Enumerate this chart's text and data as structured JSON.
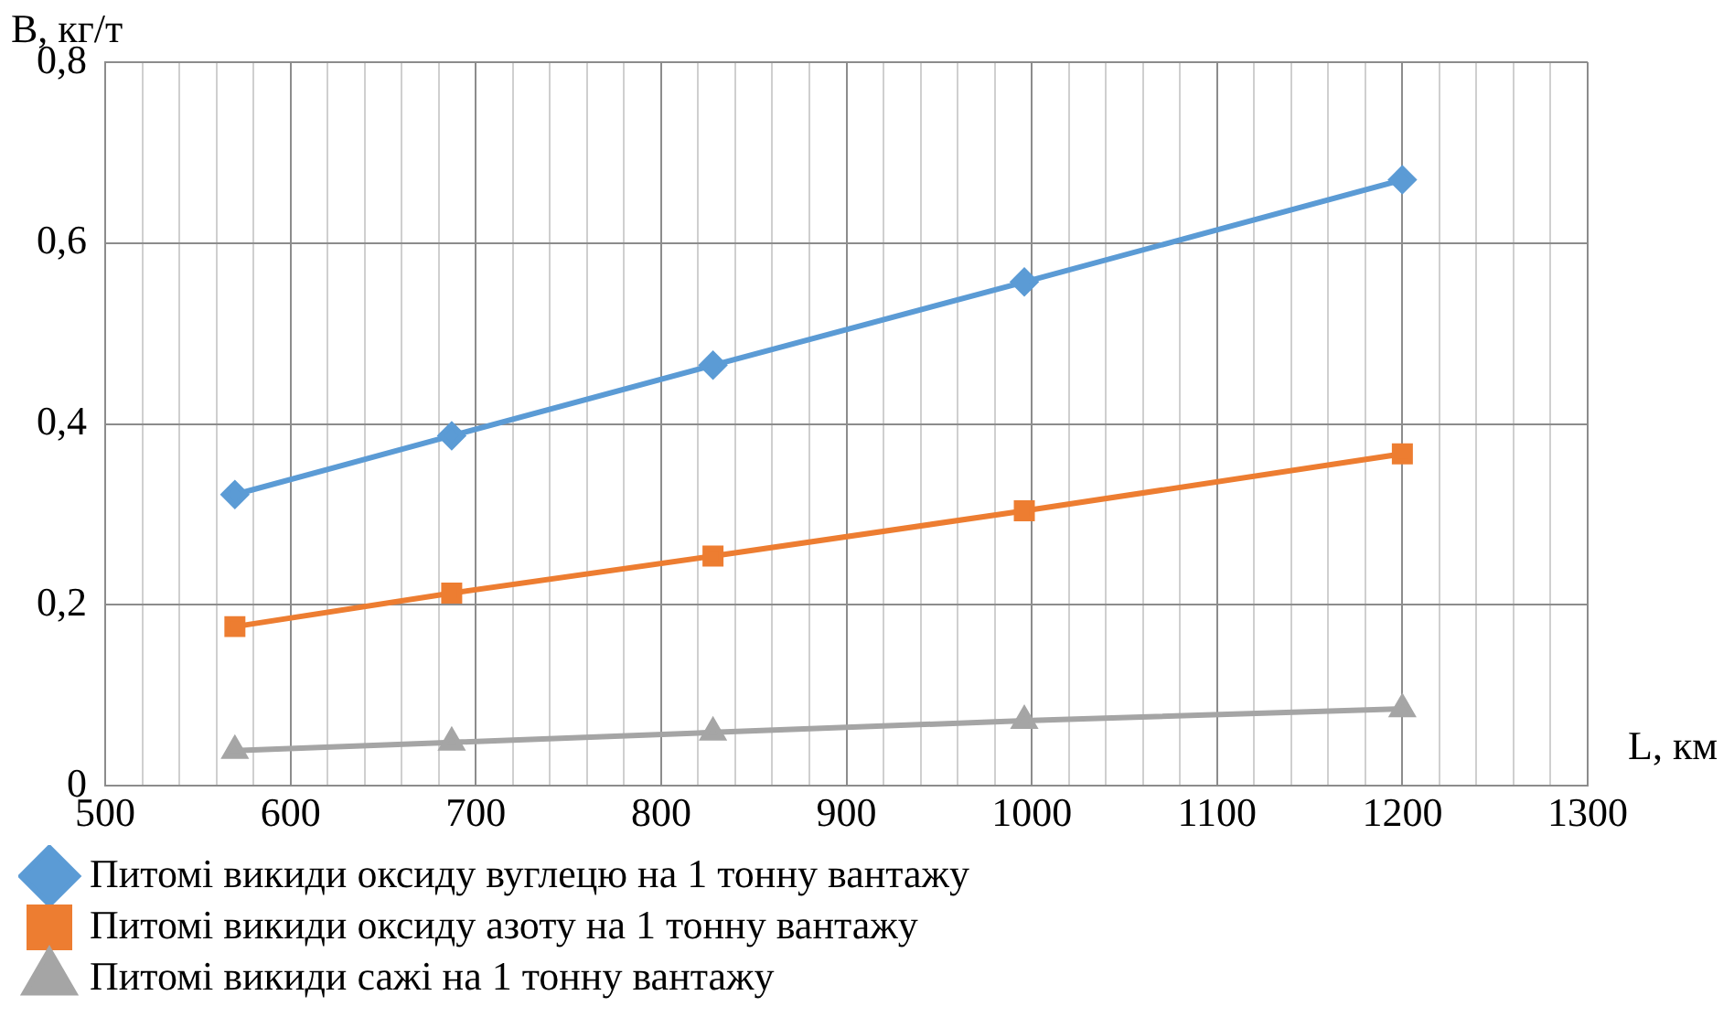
{
  "chart_data": {
    "type": "line",
    "xlabel": "L, км",
    "ylabel": "B, кг/т",
    "xlim": [
      500,
      1300
    ],
    "xticks": [
      500,
      {
        "value": 520,
        "label": null
      },
      {
        "value": 540,
        "label": null
      },
      {
        "value": 560,
        "label": null
      },
      {
        "value": 580,
        "label": null
      },
      600,
      {
        "value": 620,
        "label": null
      },
      {
        "value": 640,
        "label": null
      },
      {
        "value": 660,
        "label": null
      },
      {
        "value": 680,
        "label": null
      },
      700,
      {
        "value": 720,
        "label": null
      },
      {
        "value": 740,
        "label": null
      },
      {
        "value": 760,
        "label": null
      },
      {
        "value": 780,
        "label": null
      },
      800,
      {
        "value": 820,
        "label": null
      },
      {
        "value": 840,
        "label": null
      },
      {
        "value": 860,
        "label": null
      },
      {
        "value": 880,
        "label": null
      },
      900,
      {
        "value": 920,
        "label": null
      },
      {
        "value": 940,
        "label": null
      },
      {
        "value": 960,
        "label": null
      },
      {
        "value": 980,
        "label": null
      },
      1000,
      {
        "value": 1020,
        "label": null
      },
      {
        "value": 1040,
        "label": null
      },
      {
        "value": 1060,
        "label": null
      },
      {
        "value": 1080,
        "label": null
      },
      1100,
      {
        "value": 1120,
        "label": null
      },
      {
        "value": 1140,
        "label": null
      },
      {
        "value": 1160,
        "label": null
      },
      {
        "value": 1180,
        "label": null
      },
      1200,
      {
        "value": 1220,
        "label": null
      },
      {
        "value": 1240,
        "label": null
      },
      {
        "value": 1260,
        "label": null
      },
      {
        "value": 1280,
        "label": null
      },
      1300
    ],
    "ylim": [
      0,
      0.8
    ],
    "yticks": [
      {
        "value": 0,
        "label": "0"
      },
      {
        "value": 0.2,
        "label": "0,2"
      },
      {
        "value": 0.4,
        "label": "0,4"
      },
      {
        "value": 0.6,
        "label": "0,6"
      },
      {
        "value": 0.8,
        "label": "0,8"
      }
    ],
    "grid": true,
    "legend": "bottom",
    "line_style": "solid",
    "x": [
      570,
      687,
      828,
      996,
      1200
    ],
    "series": [
      {
        "name": "Питомі викиди оксиду вуглецю на 1 тонну вантажу",
        "color": "#5b9bd5",
        "marker": "diamond",
        "values": [
          0.322,
          0.387,
          0.465,
          0.557,
          0.67
        ]
      },
      {
        "name": "Питомі викиди оксиду азоту на 1 тонну вантажу",
        "color": "#ed7d31",
        "marker": "square",
        "values": [
          0.176,
          0.213,
          0.254,
          0.304,
          0.367
        ]
      },
      {
        "name": "Питомі викиди сажі на 1 тонну вантажу",
        "color": "#a5a5a5",
        "marker": "triangle",
        "values": [
          0.039,
          0.048,
          0.059,
          0.072,
          0.085
        ]
      }
    ]
  }
}
